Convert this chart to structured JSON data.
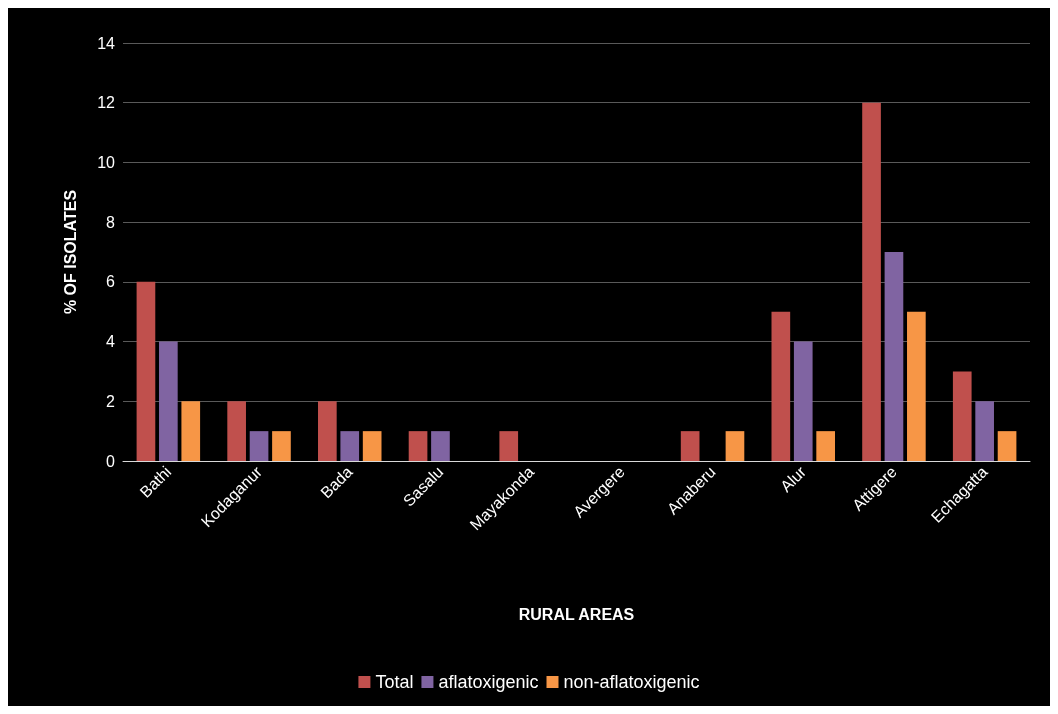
{
  "chart_data": {
    "type": "bar",
    "xlabel": "RURAL AREAS",
    "ylabel": "% OF ISOLATES",
    "categories": [
      "Bathi",
      "Kodaganur",
      "Bada",
      "Sasalu",
      "Mayakonda",
      "Avergere",
      "Anaberu",
      "Alur",
      "Attigere",
      "Echagatta"
    ],
    "series": [
      {
        "name": "Total",
        "color": "#c0504d",
        "values": [
          6,
          2,
          2,
          1,
          1,
          0,
          1,
          5,
          12,
          3
        ]
      },
      {
        "name": "aflatoxigenic",
        "color": "#8064a2",
        "values": [
          4,
          1,
          1,
          1,
          0,
          0,
          0,
          4,
          7,
          2
        ]
      },
      {
        "name": "non-aflatoxigenic",
        "color": "#f79646",
        "values": [
          2,
          1,
          1,
          0,
          0,
          0,
          1,
          1,
          5,
          1
        ]
      }
    ],
    "ylim": [
      0,
      14
    ],
    "yticks": [
      0,
      2,
      4,
      6,
      8,
      10,
      12,
      14
    ],
    "grid": "y",
    "legend": "bottom"
  }
}
